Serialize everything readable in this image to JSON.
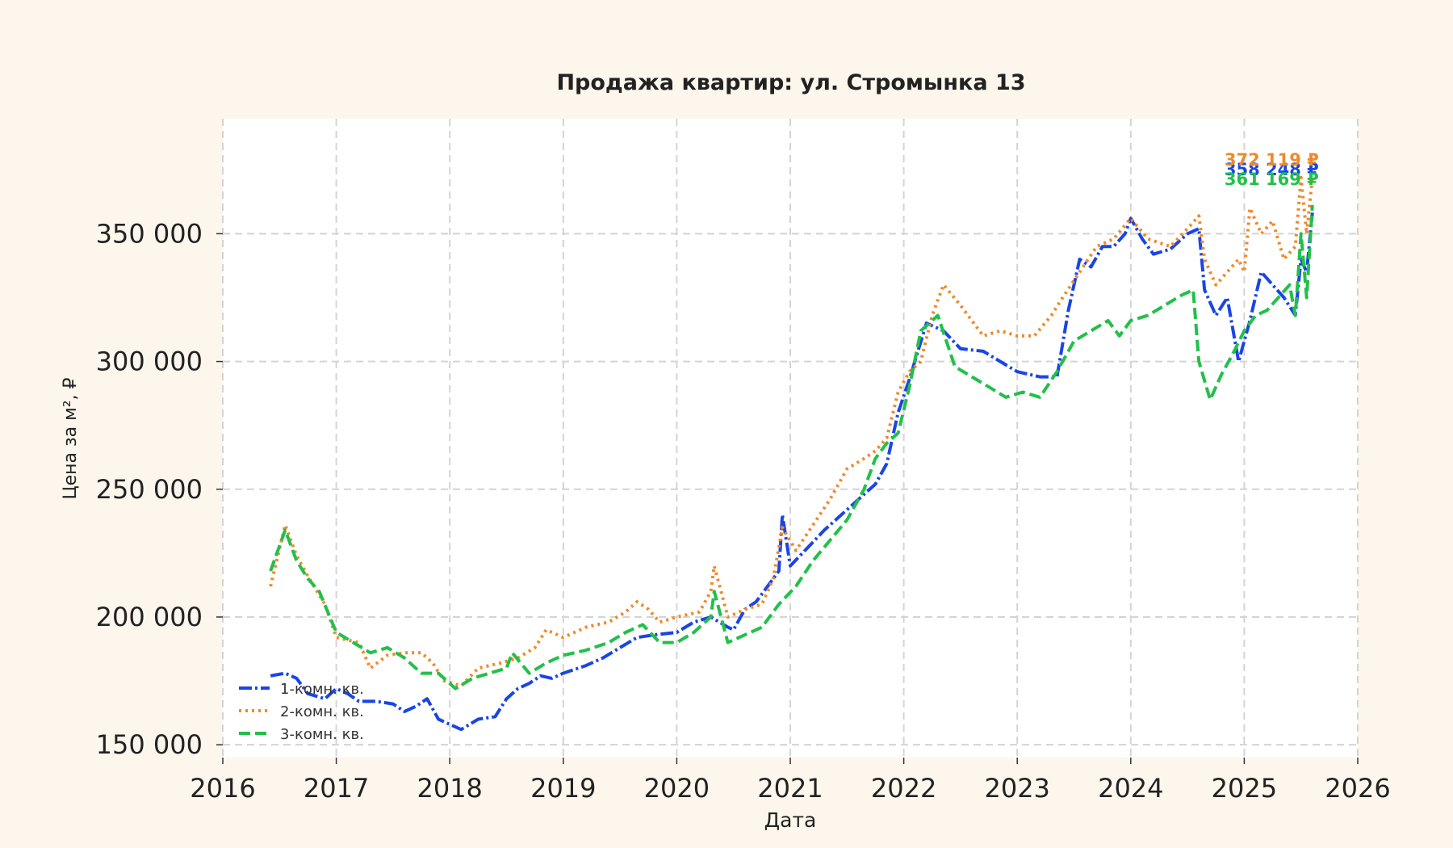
{
  "chart_data": {
    "type": "line",
    "title": "Продажа квартир: ул. Стромынка 13",
    "xlabel": "Дата",
    "ylabel": "Цена за м², ₽",
    "xlim": [
      2016,
      2026
    ],
    "ylim": [
      145000,
      395000
    ],
    "x_ticks": [
      2016,
      2017,
      2018,
      2019,
      2020,
      2021,
      2022,
      2023,
      2024,
      2025,
      2026
    ],
    "x_tick_labels": [
      "2016",
      "2017",
      "2018",
      "2019",
      "2020",
      "2021",
      "2022",
      "2023",
      "2024",
      "2025",
      "2026"
    ],
    "y_ticks": [
      150000,
      200000,
      250000,
      300000,
      350000
    ],
    "y_tick_labels": [
      "150 000",
      "200 000",
      "250 000",
      "300 000",
      "350 000"
    ],
    "grid": true,
    "legend_position": "bottom-left",
    "series": [
      {
        "name": "1-комн. кв.",
        "color": "#1a45e6",
        "dash": "dashdot",
        "end_label": "358 248 ₽",
        "x": [
          2016.42,
          2016.55,
          2016.65,
          2016.75,
          2016.9,
          2017.0,
          2017.1,
          2017.2,
          2017.35,
          2017.5,
          2017.6,
          2017.7,
          2017.8,
          2017.9,
          2018.0,
          2018.1,
          2018.25,
          2018.4,
          2018.5,
          2018.6,
          2018.7,
          2018.8,
          2018.9,
          2019.0,
          2019.2,
          2019.35,
          2019.5,
          2019.65,
          2019.8,
          2020.0,
          2020.15,
          2020.3,
          2020.45,
          2020.5,
          2020.6,
          2020.7,
          2020.8,
          2020.9,
          2020.93,
          2021.0,
          2021.15,
          2021.3,
          2021.5,
          2021.65,
          2021.75,
          2021.85,
          2021.95,
          2022.05,
          2022.2,
          2022.35,
          2022.5,
          2022.7,
          2022.85,
          2023.0,
          2023.2,
          2023.35,
          2023.45,
          2023.55,
          2023.65,
          2023.75,
          2023.85,
          2023.95,
          2024.0,
          2024.1,
          2024.2,
          2024.35,
          2024.5,
          2024.6,
          2024.65,
          2024.75,
          2024.85,
          2024.95,
          2025.05,
          2025.15,
          2025.25,
          2025.35,
          2025.45,
          2025.5,
          2025.55,
          2025.6
        ],
        "y": [
          177000,
          178000,
          176000,
          170000,
          168000,
          172000,
          170000,
          167000,
          167000,
          166000,
          163000,
          165000,
          168000,
          160000,
          158000,
          156000,
          160000,
          161000,
          168000,
          172000,
          174000,
          177000,
          176000,
          178000,
          181000,
          184000,
          188000,
          192000,
          193000,
          194000,
          198000,
          200000,
          196000,
          195000,
          203000,
          206000,
          212000,
          218000,
          240000,
          220000,
          227000,
          234000,
          242000,
          248000,
          252000,
          260000,
          280000,
          293000,
          315000,
          312000,
          305000,
          304000,
          300000,
          296000,
          294000,
          294000,
          320000,
          340000,
          337000,
          345000,
          345000,
          350000,
          356000,
          348000,
          342000,
          344000,
          350000,
          352000,
          328000,
          318000,
          325000,
          300000,
          316000,
          335000,
          330000,
          325000,
          318000,
          340000,
          335000,
          358248
        ]
      },
      {
        "name": "2-комн. кв.",
        "color": "#ee8a2a",
        "dash": "dotted",
        "end_label": "372 119 ₽",
        "x": [
          2016.42,
          2016.55,
          2016.65,
          2016.75,
          2016.9,
          2017.0,
          2017.2,
          2017.3,
          2017.45,
          2017.6,
          2017.75,
          2017.85,
          2017.95,
          2018.1,
          2018.25,
          2018.45,
          2018.6,
          2018.75,
          2018.85,
          2019.0,
          2019.2,
          2019.4,
          2019.55,
          2019.65,
          2019.75,
          2019.85,
          2020.0,
          2020.2,
          2020.3,
          2020.33,
          2020.45,
          2020.6,
          2020.75,
          2020.85,
          2020.93,
          2021.05,
          2021.2,
          2021.35,
          2021.5,
          2021.65,
          2021.75,
          2021.85,
          2021.95,
          2022.05,
          2022.15,
          2022.25,
          2022.35,
          2022.5,
          2022.7,
          2022.85,
          2023.0,
          2023.15,
          2023.3,
          2023.4,
          2023.55,
          2023.7,
          2023.85,
          2024.0,
          2024.15,
          2024.35,
          2024.5,
          2024.6,
          2024.65,
          2024.75,
          2024.85,
          2024.95,
          2025.0,
          2025.05,
          2025.15,
          2025.25,
          2025.35,
          2025.45,
          2025.5,
          2025.55,
          2025.6
        ],
        "y": [
          212000,
          236000,
          224000,
          216000,
          205000,
          192000,
          190000,
          180000,
          185000,
          186000,
          186000,
          182000,
          175000,
          173000,
          180000,
          182000,
          184000,
          188000,
          195000,
          192000,
          196000,
          198000,
          202000,
          206000,
          203000,
          198000,
          200000,
          202000,
          210000,
          220000,
          200000,
          203000,
          205000,
          215000,
          235000,
          226000,
          236000,
          246000,
          258000,
          262000,
          265000,
          270000,
          288000,
          296000,
          300000,
          318000,
          330000,
          322000,
          310000,
          312000,
          310000,
          310000,
          318000,
          325000,
          335000,
          345000,
          348000,
          356000,
          348000,
          345000,
          352000,
          357000,
          340000,
          330000,
          335000,
          340000,
          335000,
          360000,
          350000,
          355000,
          340000,
          345000,
          372000,
          350000,
          372119
        ]
      },
      {
        "name": "3-комн. кв.",
        "color": "#22c04a",
        "dash": "dashed",
        "end_label": "361 169 ₽",
        "x": [
          2016.42,
          2016.55,
          2016.65,
          2016.75,
          2016.85,
          2017.0,
          2017.15,
          2017.3,
          2017.45,
          2017.6,
          2017.75,
          2017.9,
          2018.05,
          2018.2,
          2018.35,
          2018.5,
          2018.55,
          2018.7,
          2018.85,
          2019.0,
          2019.2,
          2019.4,
          2019.55,
          2019.7,
          2019.85,
          2020.0,
          2020.15,
          2020.3,
          2020.33,
          2020.45,
          2020.6,
          2020.75,
          2020.9,
          2021.05,
          2021.2,
          2021.35,
          2021.5,
          2021.65,
          2021.75,
          2021.85,
          2021.95,
          2022.05,
          2022.15,
          2022.3,
          2022.45,
          2022.6,
          2022.75,
          2022.9,
          2023.05,
          2023.2,
          2023.35,
          2023.5,
          2023.65,
          2023.8,
          2023.9,
          2024.0,
          2024.15,
          2024.3,
          2024.45,
          2024.55,
          2024.6,
          2024.7,
          2024.8,
          2024.9,
          2025.0,
          2025.1,
          2025.2,
          2025.3,
          2025.4,
          2025.45,
          2025.5,
          2025.55,
          2025.6
        ],
        "y": [
          218000,
          234000,
          222000,
          215000,
          210000,
          194000,
          190000,
          186000,
          188000,
          184000,
          178000,
          178000,
          172000,
          176000,
          178000,
          180000,
          186000,
          178000,
          182000,
          185000,
          187000,
          190000,
          194000,
          197000,
          190000,
          190000,
          194000,
          200000,
          210000,
          190000,
          193000,
          196000,
          205000,
          212000,
          222000,
          230000,
          238000,
          250000,
          262000,
          268000,
          272000,
          290000,
          312000,
          318000,
          298000,
          294000,
          290000,
          286000,
          288000,
          286000,
          296000,
          308000,
          312000,
          316000,
          310000,
          316000,
          318000,
          322000,
          326000,
          328000,
          300000,
          285000,
          295000,
          303000,
          312000,
          318000,
          320000,
          325000,
          330000,
          318000,
          350000,
          325000,
          361169
        ]
      }
    ]
  }
}
